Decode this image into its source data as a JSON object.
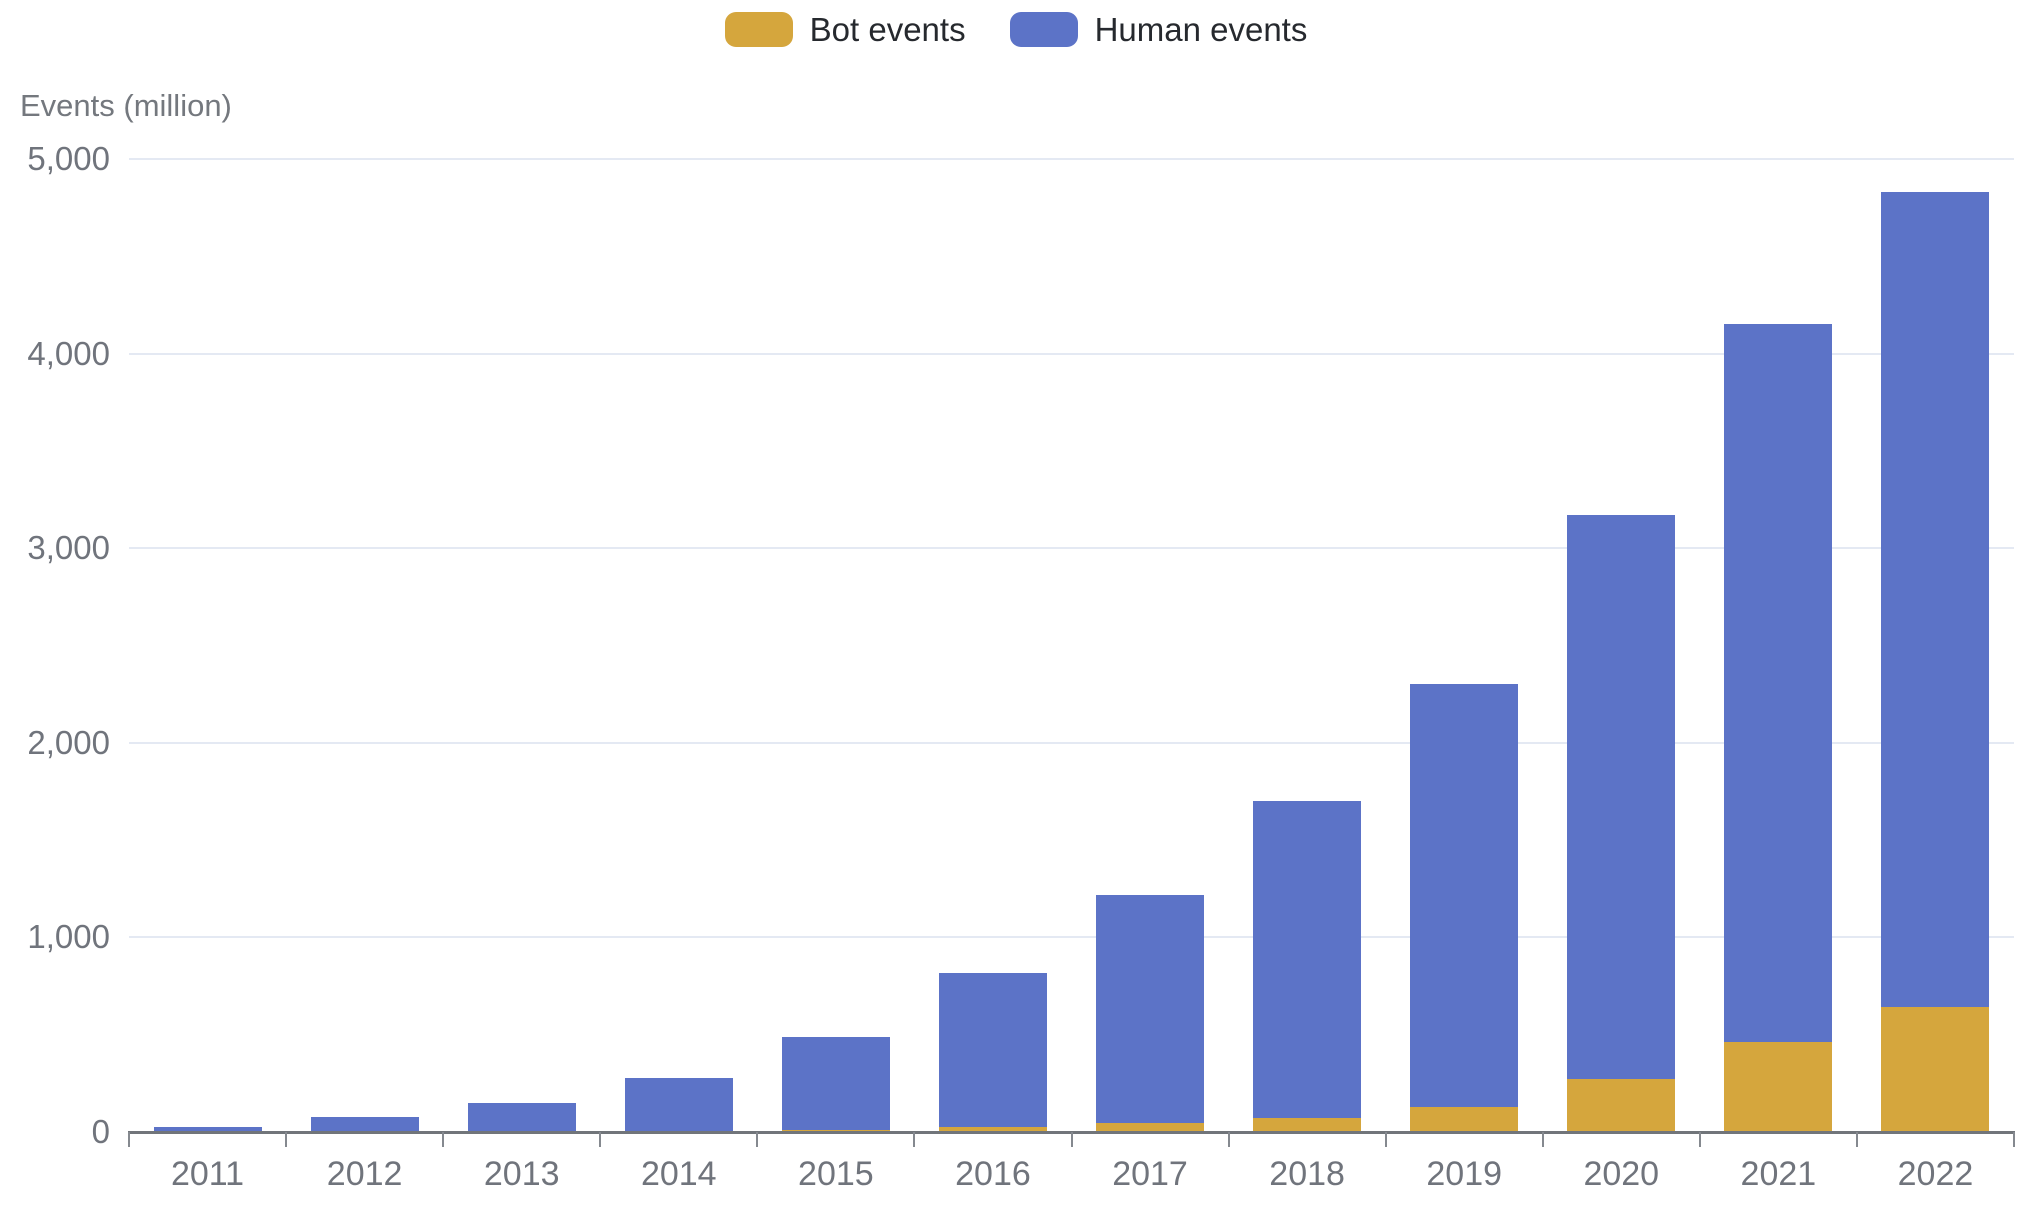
{
  "legend": {
    "items": [
      {
        "label": "Bot events",
        "color": "#D5A63D"
      },
      {
        "label": "Human events",
        "color": "#5C73C7"
      }
    ]
  },
  "chart_data": {
    "type": "bar",
    "stacked": true,
    "title": "",
    "ylabel": "Events (million)",
    "xlabel": "",
    "categories": [
      "2011",
      "2012",
      "2013",
      "2014",
      "2015",
      "2016",
      "2017",
      "2018",
      "2019",
      "2020",
      "2021",
      "2022"
    ],
    "series": [
      {
        "name": "Bot events",
        "color": "#D5A63D",
        "values": [
          1,
          2,
          4,
          6,
          12,
          25,
          48,
          70,
          130,
          270,
          460,
          640
        ]
      },
      {
        "name": "Human events",
        "color": "#5C73C7",
        "values": [
          27,
          73,
          146,
          274,
          478,
          790,
          1172,
          1630,
          2170,
          2900,
          3690,
          4190
        ]
      }
    ],
    "totals": [
      28,
      75,
      150,
      280,
      490,
      815,
      1220,
      1700,
      2300,
      3170,
      4150,
      4830
    ],
    "ylim": [
      0,
      5000
    ],
    "ytick_labels": [
      "0",
      "1,000",
      "2,000",
      "3,000",
      "4,000",
      "5,000"
    ],
    "ytick_values": [
      0,
      1000,
      2000,
      3000,
      4000,
      5000
    ],
    "grid": true,
    "legend_position": "top"
  },
  "colors": {
    "grid_line": "#e4e9f3",
    "axis_line": "#71757a",
    "tick_label": "#70747c",
    "legend_text": "#26292e",
    "background": "#ffffff"
  }
}
